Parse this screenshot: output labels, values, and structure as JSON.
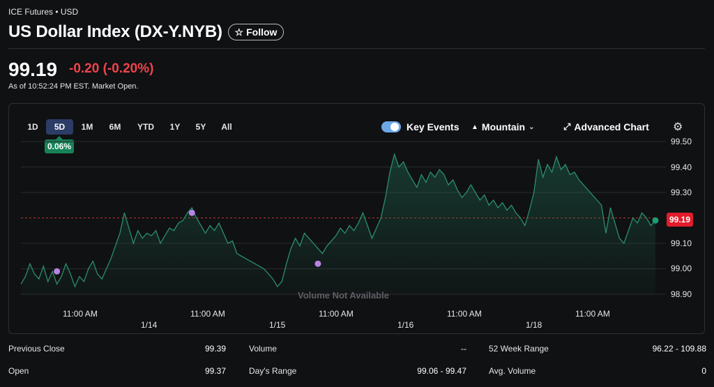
{
  "header": {
    "meta": "ICE Futures • USD",
    "title": "US Dollar Index (DX-Y.NYB)",
    "follow_label": "Follow",
    "follow_icon": "star-outline-icon"
  },
  "quote": {
    "price": "99.19",
    "change": "-0.20 (-0.20%)",
    "as_of": "As of 10:52:24 PM EST. Market Open.",
    "change_color": "#f0444b"
  },
  "toolbar": {
    "ranges": [
      "1D",
      "5D",
      "1M",
      "6M",
      "YTD",
      "1Y",
      "5Y",
      "All"
    ],
    "active_range": "5D",
    "range_change": "0.06%",
    "key_events_label": "Key Events",
    "key_events_on": true,
    "chart_type_label": "Mountain",
    "advanced_chart_label": "Advanced Chart",
    "settings_icon": "gear-icon"
  },
  "chart_data": {
    "type": "area",
    "y_ticks": [
      "99.50",
      "99.40",
      "99.30",
      "99.20",
      "99.10",
      "99.00",
      "98.90"
    ],
    "ylim": [
      98.9,
      99.5
    ],
    "grid": true,
    "x_tick_labels": [
      "11:00 AM",
      "11:00 AM",
      "11:00 AM",
      "11:00 AM",
      "11:00 AM"
    ],
    "day_labels": [
      "1/14",
      "1/15",
      "1/16",
      "1/18"
    ],
    "previous_close_line": 99.2,
    "last_value_label": "99.19",
    "line_color": "#2a8f6d",
    "volume_note": "Volume Not Available",
    "series": [
      {
        "values": [
          98.94,
          98.97,
          99.02,
          98.98,
          98.96,
          99.01,
          98.95,
          98.99,
          98.94,
          98.97,
          99.02,
          98.98,
          98.93,
          98.97,
          98.95,
          99.0,
          99.03,
          98.98,
          98.96,
          99.0,
          99.04,
          99.09,
          99.14,
          99.22,
          99.16,
          99.1,
          99.15,
          99.12,
          99.14,
          99.13,
          99.15,
          99.1,
          99.13,
          99.16,
          99.15,
          99.18,
          99.19,
          99.22,
          99.24,
          99.2,
          99.17,
          99.14,
          99.17,
          99.15,
          99.18,
          99.14,
          99.1,
          99.11,
          99.06,
          99.05,
          99.04,
          99.03,
          99.02,
          99.01,
          99.0,
          98.98,
          98.96,
          98.93,
          98.95,
          99.02,
          99.08,
          99.12,
          99.09,
          99.14,
          99.12,
          99.1,
          99.08,
          99.06,
          99.09,
          99.11,
          99.13,
          99.16,
          99.14,
          99.17,
          99.15,
          99.18,
          99.22,
          99.17,
          99.12,
          99.16,
          99.2,
          99.28,
          99.38,
          99.45,
          99.4,
          99.42,
          99.38,
          99.35,
          99.32,
          99.37,
          99.34,
          99.38,
          99.36,
          99.39,
          99.37,
          99.33,
          99.35,
          99.31,
          99.28,
          99.3,
          99.33,
          99.3,
          99.27,
          99.29,
          99.25,
          99.27,
          99.24,
          99.26,
          99.23,
          99.25,
          99.22,
          99.2,
          99.17,
          99.23,
          99.3,
          99.43,
          99.36,
          99.41,
          99.38,
          99.44,
          99.39,
          99.41,
          99.37,
          99.38,
          99.35,
          99.33,
          99.31,
          99.29,
          99.27,
          99.25,
          99.14,
          99.24,
          99.18,
          99.12,
          99.1,
          99.15,
          99.2,
          99.18,
          99.22,
          99.2,
          99.17,
          99.19
        ]
      }
    ],
    "key_events": [
      98.99,
      99.22,
      99.02
    ]
  },
  "stats": [
    {
      "label": "Previous Close",
      "value": "99.39"
    },
    {
      "label": "Volume",
      "value": "--"
    },
    {
      "label": "52 Week Range",
      "value": "96.22 - 109.88"
    },
    {
      "label": "Open",
      "value": "99.37"
    },
    {
      "label": "Day's Range",
      "value": "99.06 - 99.47"
    },
    {
      "label": "Avg. Volume",
      "value": "0"
    }
  ]
}
